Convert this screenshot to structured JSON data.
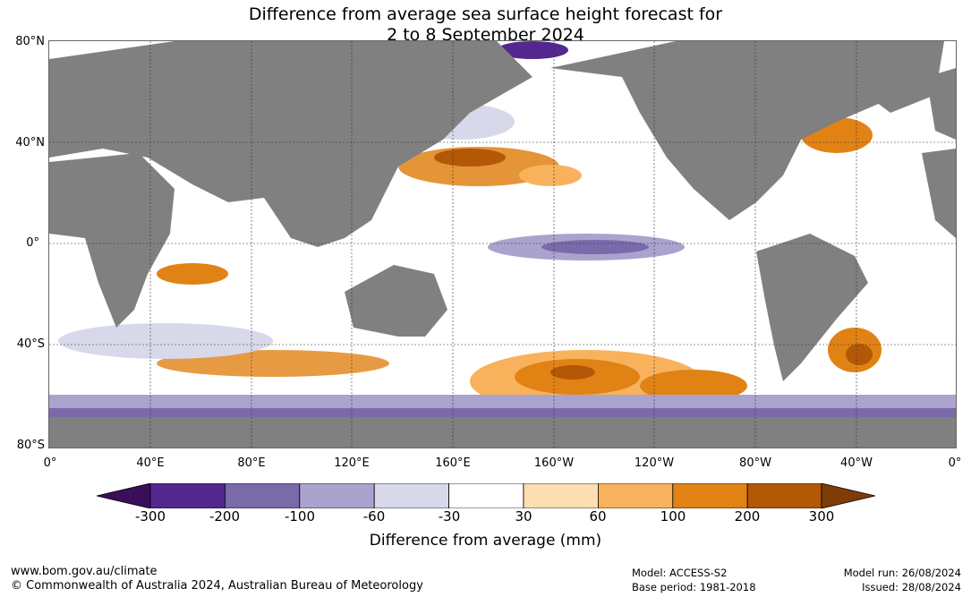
{
  "title": {
    "line1": "Difference from average sea surface height forecast for",
    "line2": "2 to 8 September 2024"
  },
  "map": {
    "lat_labels": [
      "80°N",
      "40°N",
      "0°",
      "40°S",
      "80°S"
    ],
    "lon_labels": [
      "0°",
      "40°E",
      "80°E",
      "120°E",
      "160°E",
      "160°W",
      "120°W",
      "80°W",
      "40°W",
      "0°"
    ],
    "land_color": "#808080",
    "ocean_color": "#ffffff"
  },
  "colorbar": {
    "ticks": [
      "-300",
      "-200",
      "-100",
      "-60",
      "-30",
      "30",
      "60",
      "100",
      "200",
      "300"
    ],
    "colors": [
      "#3b0e5a",
      "#54278f",
      "#7a6aaa",
      "#aaa3cd",
      "#d8d8eb",
      "#ffffff",
      "#fddeb3",
      "#f8b25c",
      "#e08214",
      "#b35806",
      "#7f3b08"
    ],
    "label": "Difference from average (mm)"
  },
  "footer": {
    "url": "www.bom.gov.au/climate",
    "copyright": "© Commonwealth of Australia 2024, Australian Bureau of Meteorology",
    "model": "Model: ACCESS-S2",
    "base_period": "Base period: 1981-2018",
    "model_run": "Model run: 26/08/2024",
    "issued": "Issued: 28/08/2024"
  }
}
